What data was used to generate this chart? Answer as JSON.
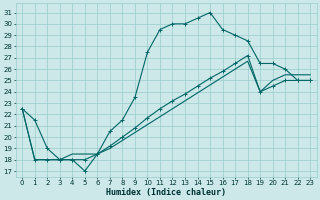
{
  "xlabel": "Humidex (Indice chaleur)",
  "x_ticks": [
    0,
    1,
    2,
    3,
    4,
    5,
    6,
    7,
    8,
    9,
    10,
    11,
    12,
    13,
    14,
    15,
    16,
    17,
    18,
    19,
    20,
    21,
    22,
    23
  ],
  "y_ticks": [
    17,
    18,
    19,
    20,
    21,
    22,
    23,
    24,
    25,
    26,
    27,
    28,
    29,
    30,
    31
  ],
  "xlim": [
    -0.5,
    23.5
  ],
  "ylim": [
    16.5,
    31.8
  ],
  "bg_color": "#cce8e8",
  "grid_color": "#99cccc",
  "line_color": "#006666",
  "main_line_x": [
    0,
    1,
    2,
    3,
    4,
    5,
    6,
    7,
    8,
    9,
    10,
    11,
    12,
    13,
    14,
    15,
    16,
    17,
    18,
    19,
    20,
    21,
    22,
    23
  ],
  "main_line_y": [
    22.5,
    21.5,
    19.0,
    18.0,
    18.0,
    17.0,
    18.5,
    20.5,
    21.5,
    23.5,
    27.5,
    29.5,
    30.0,
    30.0,
    30.5,
    31.0,
    29.5,
    29.0,
    28.5,
    26.5,
    26.5,
    26.0,
    25.0,
    25.0
  ],
  "line2_x": [
    0,
    1,
    2,
    3,
    4,
    5,
    6,
    7,
    8,
    9,
    10,
    11,
    12,
    13,
    14,
    15,
    16,
    17,
    18,
    19,
    20,
    21,
    22,
    23
  ],
  "line2_y": [
    22.5,
    18.0,
    18.0,
    18.0,
    18.0,
    18.0,
    18.5,
    19.2,
    20.0,
    20.8,
    21.7,
    22.5,
    23.2,
    23.8,
    24.5,
    25.2,
    25.8,
    26.5,
    27.2,
    24.0,
    24.5,
    25.0,
    25.0,
    25.0
  ],
  "line3_x": [
    0,
    1,
    2,
    3,
    4,
    5,
    6,
    7,
    8,
    9,
    10,
    11,
    12,
    13,
    14,
    15,
    16,
    17,
    18,
    19,
    20,
    21,
    22,
    23
  ],
  "line3_y": [
    22.5,
    18.0,
    18.0,
    18.0,
    18.5,
    18.5,
    18.5,
    19.0,
    19.7,
    20.4,
    21.1,
    21.8,
    22.5,
    23.2,
    23.9,
    24.6,
    25.3,
    26.0,
    26.7,
    24.0,
    25.0,
    25.5,
    25.5,
    25.5
  ]
}
